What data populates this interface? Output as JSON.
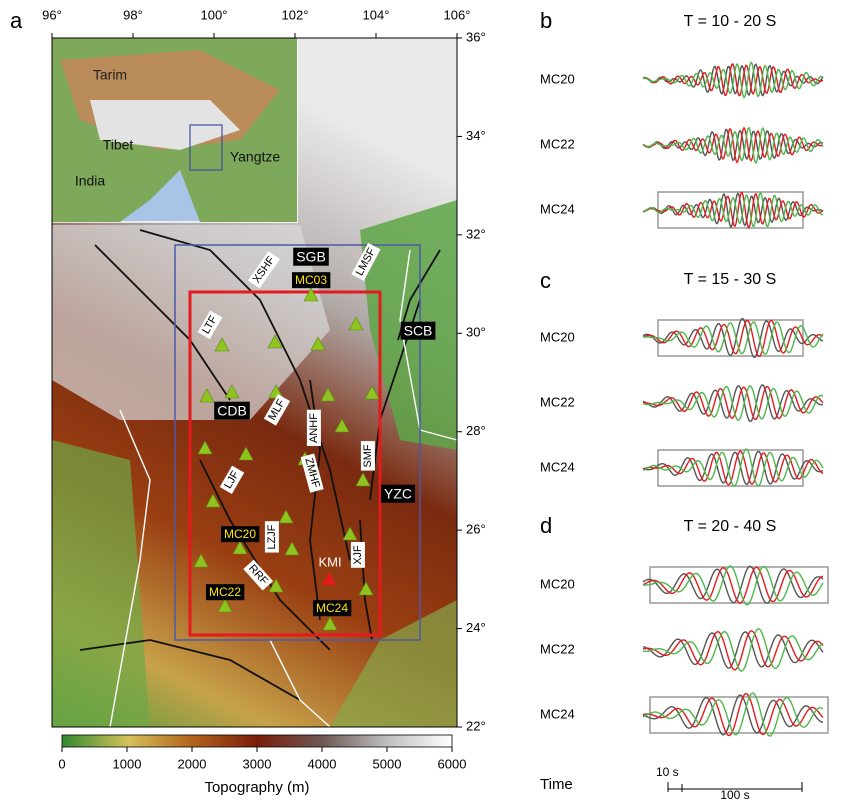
{
  "panels": {
    "a": "a",
    "b": "b",
    "c": "c",
    "d": "d"
  },
  "map": {
    "lon_ticks": [
      {
        "value": 96,
        "label": "96°"
      },
      {
        "value": 98,
        "label": "98°"
      },
      {
        "value": 100,
        "label": "100°"
      },
      {
        "value": 102,
        "label": "102°"
      },
      {
        "value": 104,
        "label": "104°"
      },
      {
        "value": 106,
        "label": "106°"
      }
    ],
    "lat_ticks": [
      {
        "value": 22,
        "label": "22°"
      },
      {
        "value": 24,
        "label": "24°"
      },
      {
        "value": 26,
        "label": "26°"
      },
      {
        "value": 28,
        "label": "28°"
      },
      {
        "value": 30,
        "label": "30°"
      },
      {
        "value": 32,
        "label": "32°"
      },
      {
        "value": 34,
        "label": "34°"
      },
      {
        "value": 36,
        "label": "36°"
      }
    ],
    "inset_labels": [
      "Tarim",
      "Tibet",
      "India",
      "Yangtze"
    ],
    "blocks": [
      "SGB",
      "SCB",
      "CDB",
      "YZC"
    ],
    "stations": [
      "MC03",
      "MC20",
      "MC22",
      "MC24"
    ],
    "faults": [
      "XSHF",
      "LMSF",
      "LTF",
      "MLF",
      "ANHF",
      "SMF",
      "LJF",
      "ZMHF",
      "LZJF",
      "XJF",
      "RRF"
    ],
    "city": "KMI"
  },
  "colorbar": {
    "range": [
      0,
      6000
    ],
    "ticks": [
      0,
      1000,
      2000,
      3000,
      4000,
      5000,
      6000
    ],
    "label": "Topography (m)"
  },
  "waveforms": [
    {
      "title": "T = 10 - 20 S",
      "stations": [
        "MC20",
        "MC22",
        "MC24"
      ]
    },
    {
      "title": "T = 15 - 30 S",
      "stations": [
        "MC20",
        "MC22",
        "MC24"
      ]
    },
    {
      "title": "T = 20 - 40 S",
      "stations": [
        "MC20",
        "MC22",
        "MC24"
      ]
    }
  ],
  "time": {
    "label": "Time",
    "scale_small": "10 s",
    "scale_large": "100 s"
  }
}
